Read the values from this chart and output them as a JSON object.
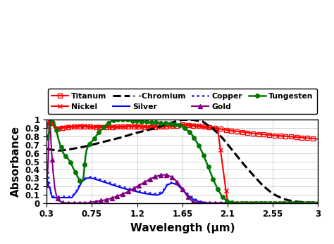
{
  "title": "",
  "xlabel": "Wavelength (μm)",
  "ylabel": "Absorbance",
  "xlim": [
    0.3,
    3.0
  ],
  "ylim": [
    0,
    1.0
  ],
  "xticks": [
    0.3,
    0.75,
    1.2,
    1.65,
    2.1,
    2.55,
    3.0
  ],
  "yticks": [
    0,
    0.1,
    0.2,
    0.3,
    0.4,
    0.5,
    0.6,
    0.7,
    0.8,
    0.9,
    1.0
  ],
  "background": "#ffffff",
  "grid_color": "#cccccc",
  "series": {
    "Titanum": {
      "color": "#ff0000",
      "linestyle": "-",
      "marker": "s",
      "markerfacecolor": "none",
      "markersize": 4,
      "markevery": 40,
      "linewidth": 1.5
    },
    "Nickel": {
      "color": "#ff0000",
      "linestyle": "-",
      "marker": "x",
      "markerfacecolor": "#ff0000",
      "markersize": 5,
      "markevery": 40,
      "linewidth": 1.5
    },
    "Chromium": {
      "color": "#000000",
      "linestyle": "--",
      "marker": "None",
      "linewidth": 2.2
    },
    "Silver": {
      "color": "#0000ff",
      "linestyle": "-",
      "marker": "None",
      "linewidth": 1.5
    },
    "Copper": {
      "color": "#1a1aff",
      "linestyle": ":",
      "marker": "None",
      "linewidth": 2.0
    },
    "Gold": {
      "color": "#800080",
      "linestyle": "-",
      "marker": "^",
      "markerfacecolor": "#800080",
      "markersize": 4,
      "markevery": 40,
      "linewidth": 1.5
    },
    "Tungsten": {
      "color": "#007700",
      "linestyle": "-",
      "marker": "o",
      "markerfacecolor": "#007700",
      "markersize": 4,
      "markevery": 35,
      "linewidth": 1.8
    }
  }
}
